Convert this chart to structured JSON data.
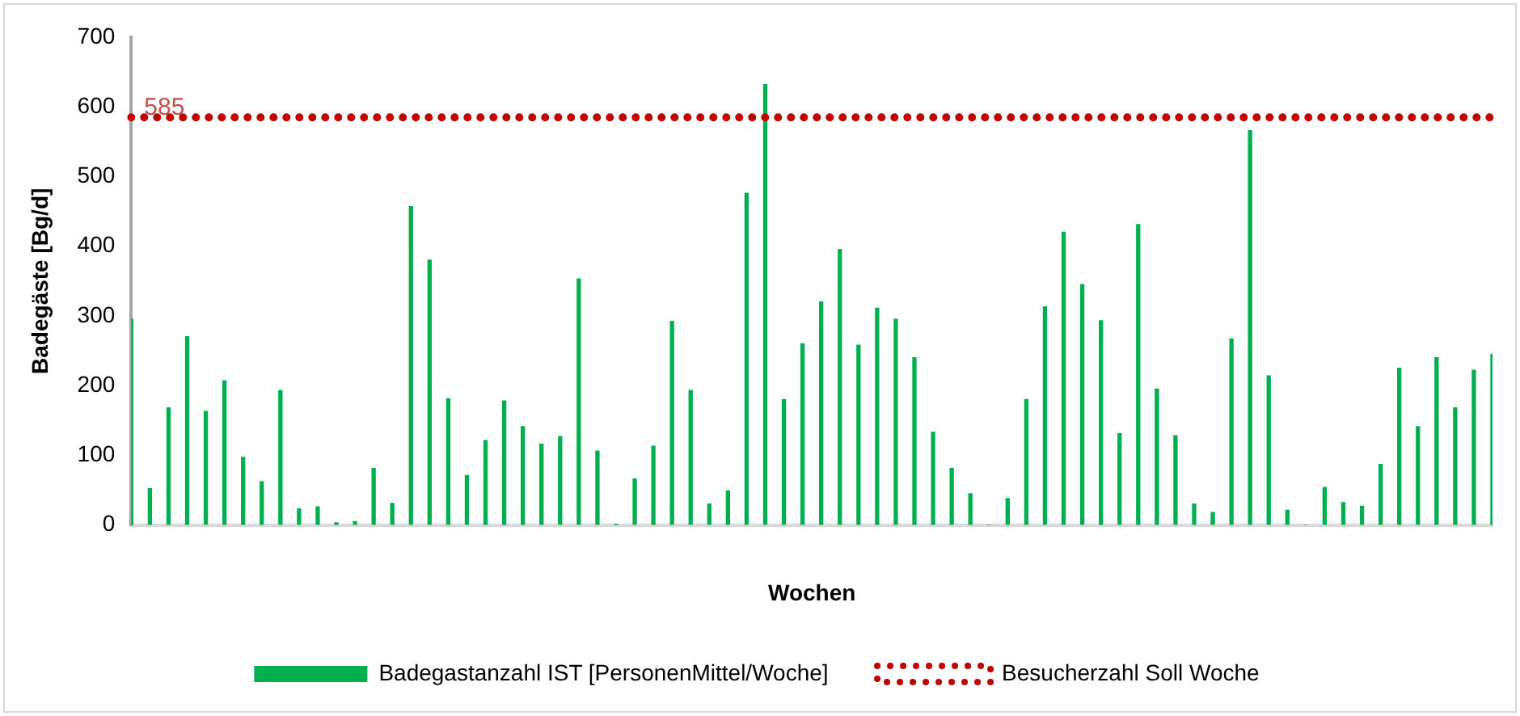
{
  "chart_data": {
    "type": "bar",
    "xlabel": "Wochen",
    "ylabel": "Badegäste [Bg/d]",
    "categories": [
      null,
      null,
      null,
      null,
      null,
      null,
      null,
      null,
      null,
      null,
      null,
      null,
      null,
      null,
      null,
      null,
      null,
      null,
      null,
      null,
      null,
      null,
      null,
      null,
      null,
      null,
      null,
      null,
      null,
      null,
      null,
      null,
      null,
      null,
      null,
      null,
      null,
      null,
      null,
      null,
      null,
      null,
      null,
      null,
      null,
      null,
      null,
      null,
      null,
      null,
      null,
      null,
      null,
      null,
      null,
      null,
      null,
      null,
      null,
      null,
      null,
      null,
      null,
      null,
      null,
      null,
      null,
      null,
      null,
      null,
      null,
      null,
      null,
      null
    ],
    "series": [
      {
        "name": "Badegastanzahl IST [PersonenMittel/Woche]",
        "color": "#00b050",
        "values": [
          295,
          52,
          168,
          270,
          163,
          207,
          97,
          62,
          193,
          23,
          26,
          3,
          5,
          81,
          31,
          457,
          380,
          181,
          71,
          121,
          178,
          141,
          116,
          127,
          353,
          106,
          1,
          66,
          113,
          292,
          193,
          30,
          49,
          476,
          632,
          180,
          260,
          320,
          395,
          258,
          311,
          295,
          240,
          133,
          81,
          45,
          0,
          38,
          180,
          313,
          420,
          345,
          293,
          131,
          431,
          195,
          128,
          30,
          18,
          267,
          566,
          214,
          21,
          0,
          54,
          32,
          27,
          87,
          225,
          141,
          240,
          168,
          222,
          245
        ]
      },
      {
        "name": "Besucherzahl Soll Woche",
        "type": "line",
        "color": "#c00000",
        "line_style": "dotted",
        "marker": "none",
        "values": [
          585,
          585,
          585,
          585,
          585,
          585,
          585,
          585,
          585,
          585,
          585,
          585,
          585,
          585,
          585,
          585,
          585,
          585,
          585,
          585,
          585,
          585,
          585,
          585,
          585,
          585,
          585,
          585,
          585,
          585,
          585,
          585,
          585,
          585,
          585,
          585,
          585,
          585,
          585,
          585,
          585,
          585,
          585,
          585,
          585,
          585,
          585,
          585,
          585,
          585,
          585,
          585,
          585,
          585,
          585,
          585,
          585,
          585,
          585,
          585,
          585,
          585,
          585,
          585,
          585,
          585,
          585,
          585,
          585,
          585,
          585,
          585,
          585,
          585
        ],
        "value_labels": [
          "585",
          null,
          null,
          null,
          null,
          null,
          null,
          null,
          null,
          null,
          null,
          null,
          null,
          null,
          null,
          null,
          null,
          null,
          null,
          null,
          null,
          null,
          null,
          null,
          null,
          null,
          null,
          null,
          null,
          null,
          null,
          null,
          null,
          null,
          null,
          null,
          null,
          null,
          null,
          null,
          null,
          null,
          null,
          null,
          null,
          null,
          null,
          null,
          null,
          null,
          null,
          null,
          null,
          null,
          null,
          null,
          null,
          null,
          null,
          null,
          null,
          null,
          null,
          null,
          null,
          null,
          null,
          null,
          null,
          null,
          null,
          null,
          null,
          null
        ]
      }
    ],
    "ylim": [
      0,
      700
    ],
    "yticks": [
      0,
      100,
      200,
      300,
      400,
      500,
      600,
      700
    ],
    "grid": false,
    "legend": "bottom"
  }
}
